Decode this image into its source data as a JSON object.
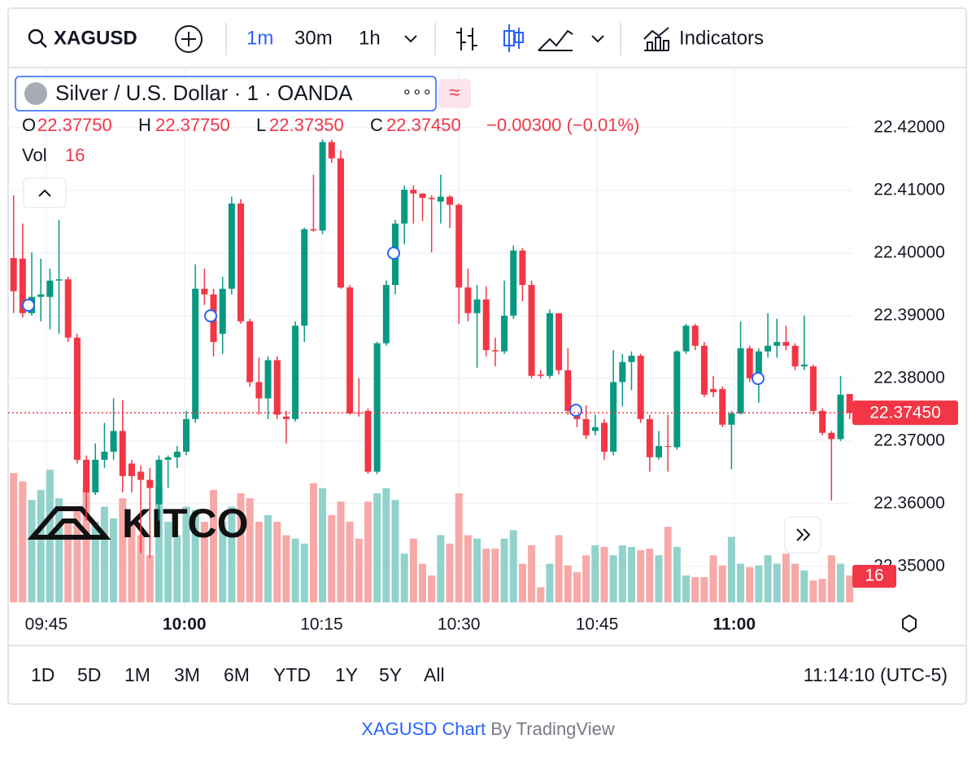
{
  "toolbar": {
    "symbol": "XAGUSD",
    "intervals": [
      "1m",
      "30m",
      "1h"
    ],
    "indicators": "Indicators"
  },
  "header": {
    "title": "Silver / U.S. Dollar · 1 · OANDA",
    "dots": "∘∘∘",
    "compare": "≈"
  },
  "legend": {
    "o": "O",
    "h": "H",
    "l": "L",
    "c": "C",
    "open": "22.37750",
    "high": "22.37750",
    "low": "22.37350",
    "close": "22.37450",
    "change": "−0.00300 (−0.01%)",
    "vol": "Vol"
  },
  "watermark": "KITCO",
  "chart_data": {
    "type": "candlestick",
    "open": [
      22.3992,
      22.3991,
      22.3904,
      22.393,
      22.393,
      22.3956,
      22.3958,
      22.3865,
      22.367,
      22.3618,
      22.367,
      22.3683,
      22.3716,
      22.3664,
      22.3651,
      22.3638,
      22.3599,
      22.367,
      22.3674,
      22.3683,
      22.3735,
      22.3943,
      22.3934,
      22.3871,
      22.3943,
      22.4079,
      22.3891,
      22.3794,
      22.3768,
      22.3829,
      22.3739,
      22.3735,
      22.3884,
      22.4038,
      22.4036,
      22.4177,
      22.4151,
      22.3945,
      22.3745,
      22.3748,
      22.3651,
      22.3856,
      22.3949,
      22.4047,
      22.4101,
      22.4095,
      22.4088,
      22.4082,
      22.409,
      22.4077,
      22.3945,
      22.3904,
      22.3926,
      22.3845,
      22.3843,
      22.39,
      22.4004,
      22.3949,
      22.3806,
      22.3804,
      22.3904,
      22.3813,
      22.3748,
      22.3735,
      22.3716,
      22.3729,
      22.3683,
      22.3794,
      22.3826,
      22.3836,
      22.3735,
      22.3674,
      22.3692,
      22.369,
      22.3843,
      22.3884,
      22.3852,
      22.3783,
      22.3783,
      22.3726,
      22.3744,
      22.3848,
      22.38,
      22.3843,
      22.3852,
      22.3858,
      22.3852,
      22.3819,
      22.3819,
      22.3748,
      22.3713,
      22.3703,
      22.3775
    ],
    "high": [
      22.4092,
      22.4047,
      22.4001,
      22.3991,
      22.3975,
      22.4053,
      22.3962,
      22.3871,
      22.3677,
      22.3696,
      22.3729,
      22.3768,
      22.3765,
      22.367,
      22.3661,
      22.3657,
      22.3677,
      22.3677,
      22.3692,
      22.3748,
      22.3982,
      22.3975,
      22.3943,
      22.3962,
      22.409,
      22.4086,
      22.3895,
      22.3833,
      22.3835,
      22.3835,
      22.3748,
      22.3891,
      22.404,
      22.4125,
      22.4181,
      22.4181,
      22.4164,
      22.3949,
      22.38,
      22.3752,
      22.3858,
      22.3956,
      22.4053,
      22.4108,
      22.4108,
      22.4095,
      22.4092,
      22.4125,
      22.4092,
      22.4079,
      22.3975,
      22.3949,
      22.3947,
      22.3865,
      22.3956,
      22.4012,
      22.4008,
      22.3956,
      22.3813,
      22.391,
      22.3904,
      22.3848,
      22.3757,
      22.3757,
      22.3742,
      22.3735,
      22.3845,
      22.3839,
      22.3843,
      22.3839,
      22.3742,
      22.3716,
      22.3742,
      22.3845,
      22.3887,
      22.3887,
      22.3858,
      22.3804,
      22.3787,
      22.3748,
      22.3891,
      22.3852,
      22.3848,
      22.3904,
      22.3895,
      22.3884,
      22.3856,
      22.39,
      22.3822,
      22.3752,
      22.3716,
      22.3804,
      22.3775
    ],
    "low": [
      22.3904,
      22.3897,
      22.39,
      22.3891,
      22.3878,
      22.3871,
      22.3858,
      22.3664,
      22.3573,
      22.3614,
      22.3657,
      22.367,
      22.3618,
      22.3618,
      22.3521,
      22.3514,
      22.3573,
      22.3625,
      22.3657,
      22.3677,
      22.3729,
      22.3917,
      22.3835,
      22.3839,
      22.3934,
      22.3887,
      22.3787,
      22.3742,
      22.3735,
      22.3735,
      22.3696,
      22.3731,
      22.3858,
      22.4034,
      22.403,
      22.4144,
      22.3943,
      22.3742,
      22.3739,
      22.3648,
      22.3647,
      22.3852,
      22.3934,
      22.4014,
      22.4047,
      22.4051,
      22.4001,
      22.4047,
      22.404,
      22.3887,
      22.3891,
      22.3817,
      22.3835,
      22.3819,
      22.3839,
      22.3895,
      22.3923,
      22.38,
      22.38,
      22.38,
      22.3806,
      22.3742,
      22.3722,
      22.3703,
      22.3709,
      22.367,
      22.3677,
      22.3755,
      22.3781,
      22.3729,
      22.3651,
      22.367,
      22.3651,
      22.3686,
      22.3839,
      22.3845,
      22.377,
      22.377,
      22.3722,
      22.3655,
      22.3742,
      22.3794,
      22.3761,
      22.3833,
      22.3833,
      22.3845,
      22.3813,
      22.3813,
      22.3742,
      22.3709,
      22.3605,
      22.37,
      22.3735
    ],
    "close": [
      22.3939,
      22.3904,
      22.393,
      22.3934,
      22.3956,
      22.3958,
      22.3865,
      22.367,
      22.3618,
      22.367,
      22.3683,
      22.3716,
      22.3644,
      22.3644,
      22.3638,
      22.3625,
      22.367,
      22.3674,
      22.3683,
      22.3735,
      22.3943,
      22.3934,
      22.3858,
      22.3943,
      22.4079,
      22.3891,
      22.3794,
      22.3768,
      22.3829,
      22.3742,
      22.3735,
      22.3884,
      22.4038,
      22.4036,
      22.4177,
      22.4151,
      22.3945,
      22.3744,
      22.3744,
      22.3651,
      22.3856,
      22.3949,
      22.4047,
      22.4101,
      22.4095,
      22.4088,
      22.4086,
      22.409,
      22.4077,
      22.3945,
      22.3904,
      22.3926,
      22.3845,
      22.3843,
      22.39,
      22.4004,
      22.3949,
      22.3804,
      22.3804,
      22.3904,
      22.3813,
      22.3748,
      22.3735,
      22.3709,
      22.3722,
      22.3683,
      22.3794,
      22.3826,
      22.3836,
      22.3735,
      22.3674,
      22.3692,
      22.3691,
      22.3843,
      22.3884,
      22.3852,
      22.3774,
      22.3778,
      22.3726,
      22.3744,
      22.3848,
      22.38,
      22.3843,
      22.3852,
      22.3858,
      22.3852,
      22.3819,
      22.3822,
      22.3748,
      22.3713,
      22.3703,
      22.3774,
      22.3745
    ],
    "volume": [
      77,
      72,
      61,
      67,
      79,
      62,
      48,
      55,
      69,
      48,
      57,
      50,
      62,
      48,
      40,
      28,
      69,
      48,
      40,
      57,
      55,
      48,
      67,
      48,
      57,
      65,
      62,
      48,
      52,
      48,
      40,
      38,
      35,
      71,
      68,
      52,
      60,
      48,
      38,
      60,
      65,
      68,
      61,
      29,
      38,
      23,
      16,
      40,
      35,
      65,
      40,
      38,
      32,
      32,
      38,
      43,
      23,
      34,
      9,
      23,
      40,
      22,
      18,
      28,
      34,
      33,
      28,
      34,
      33,
      31,
      32,
      28,
      45,
      33,
      16,
      15,
      15,
      28,
      22,
      39,
      23,
      21,
      22,
      28,
      23,
      29,
      23,
      19,
      13,
      14,
      28,
      23,
      16
    ],
    "up_color": "#089981",
    "down_color": "#f23645",
    "up_volume_color": "#92d2cc",
    "down_volume_color": "#f7a9a7",
    "xlim": [
      -0.6,
      92.3
    ],
    "xticks": [
      {
        "value": 3.6,
        "label": "09:45"
      },
      {
        "value": 18.8,
        "label": "10:00",
        "bold": true
      },
      {
        "value": 33.9,
        "label": "10:15"
      },
      {
        "value": 49,
        "label": "10:30"
      },
      {
        "value": 64.2,
        "label": "10:45"
      },
      {
        "value": 79.3,
        "label": "11:00",
        "bold": true
      }
    ],
    "ylim": [
      22.3436,
      22.4296
    ],
    "yticks": [
      {
        "value": 22.35,
        "label": "22.35000"
      },
      {
        "value": 22.36,
        "label": "22.36000"
      },
      {
        "value": 22.37,
        "label": "22.37000"
      },
      {
        "value": 22.38,
        "label": "22.38000"
      },
      {
        "value": 22.39,
        "label": "22.39000"
      },
      {
        "value": 22.4,
        "label": "22.40000"
      },
      {
        "value": 22.41,
        "label": "22.41000"
      },
      {
        "value": 22.42,
        "label": "22.42000"
      }
    ],
    "vlim": [
      0,
      80
    ],
    "grid": true
  },
  "ranges": [
    "1D",
    "5D",
    "1M",
    "3M",
    "6M",
    "YTD",
    "1Y",
    "5Y",
    "All"
  ],
  "clock": "11:14:10 (UTC-5)",
  "footer": {
    "link": "XAGUSD Chart",
    "by": "By TradingView"
  }
}
